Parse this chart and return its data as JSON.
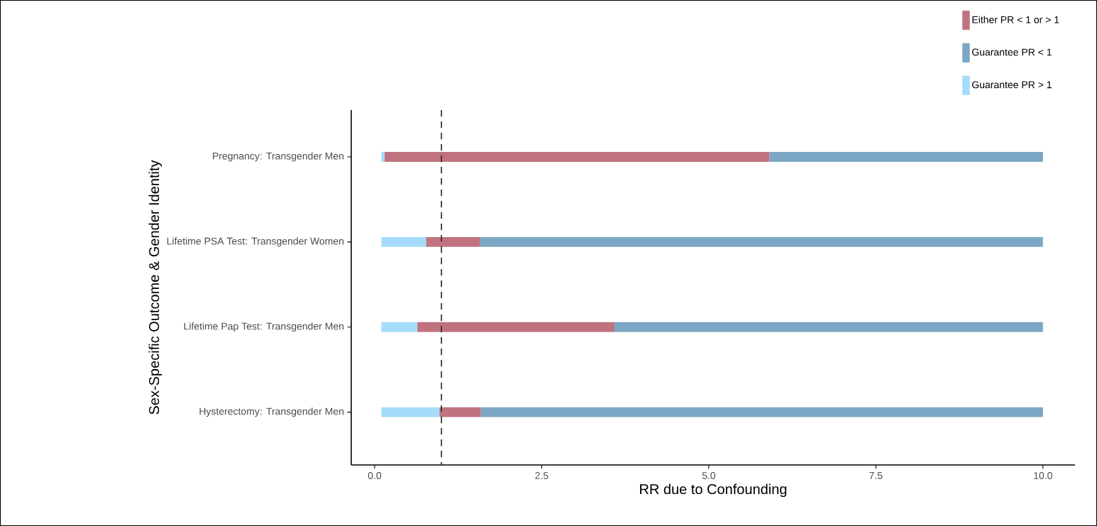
{
  "chart_data": {
    "type": "bar",
    "orientation": "horizontal",
    "stacked": false,
    "xlabel": "RR due to Confounding",
    "ylabel": "Sex-Specific Outcome & Gender Identity",
    "categories": [
      "Pregnancy: Transgender Men",
      "Lifetime PSA Test: Transgender Women",
      "Lifetime Pap Test: Transgender Men",
      "Hysterectomy: Transgender Men"
    ],
    "series": [
      {
        "name": "Guarantee PR > 1",
        "color": "#a6dcfb",
        "base": [
          0.1,
          0.1,
          0.1,
          0.1
        ],
        "values": [
          0.05,
          0.67,
          0.54,
          0.87
        ]
      },
      {
        "name": "Either PR < 1 or > 1",
        "color": "#c0737f",
        "base": [
          0.15,
          0.77,
          0.64,
          0.97
        ],
        "values": [
          5.76,
          0.81,
          2.95,
          0.62
        ]
      },
      {
        "name": "Guarantee PR < 1",
        "color": "#7ba7c4",
        "base": [
          5.91,
          1.58,
          3.59,
          1.59
        ],
        "values": [
          4.09,
          8.42,
          6.41,
          8.41
        ]
      }
    ],
    "xlim": [
      -0.35,
      10.48
    ],
    "xticks": [
      {
        "value": 0,
        "label": "0.0"
      },
      2.5,
      {
        "value": 5,
        "label": "5.0"
      },
      7.5,
      {
        "value": 10,
        "label": "10.0"
      }
    ],
    "ref_lines": [
      {
        "axis": "x",
        "value": 1,
        "line_style": "dashed",
        "color": "#333333"
      }
    ],
    "legend": "top right",
    "grid": false
  }
}
